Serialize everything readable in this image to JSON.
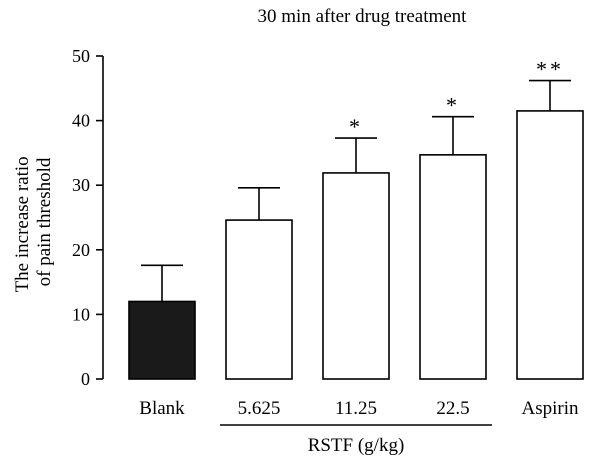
{
  "chart_data": {
    "type": "bar",
    "title": "30 min after drug treatment",
    "ylabel_lines": [
      "The increase ratio",
      "of pain threshold"
    ],
    "categories": [
      "Blank",
      "5.625",
      "11.25",
      "22.5",
      "Aspirin"
    ],
    "values": [
      12.0,
      24.6,
      31.9,
      34.7,
      41.5
    ],
    "errors": [
      5.6,
      5.0,
      5.4,
      5.9,
      4.7
    ],
    "significance": [
      "",
      "",
      "*",
      "*",
      "**"
    ],
    "bar_colors": [
      "#1a1a1a",
      "#ffffff",
      "#ffffff",
      "#ffffff",
      "#ffffff"
    ],
    "ylim": [
      0,
      50
    ],
    "yticks": [
      0,
      10,
      20,
      30,
      40,
      50
    ],
    "group": {
      "label": "RSTF (g/kg)",
      "from_index": 1,
      "to_index": 3
    },
    "grid": false,
    "legend": "none"
  }
}
